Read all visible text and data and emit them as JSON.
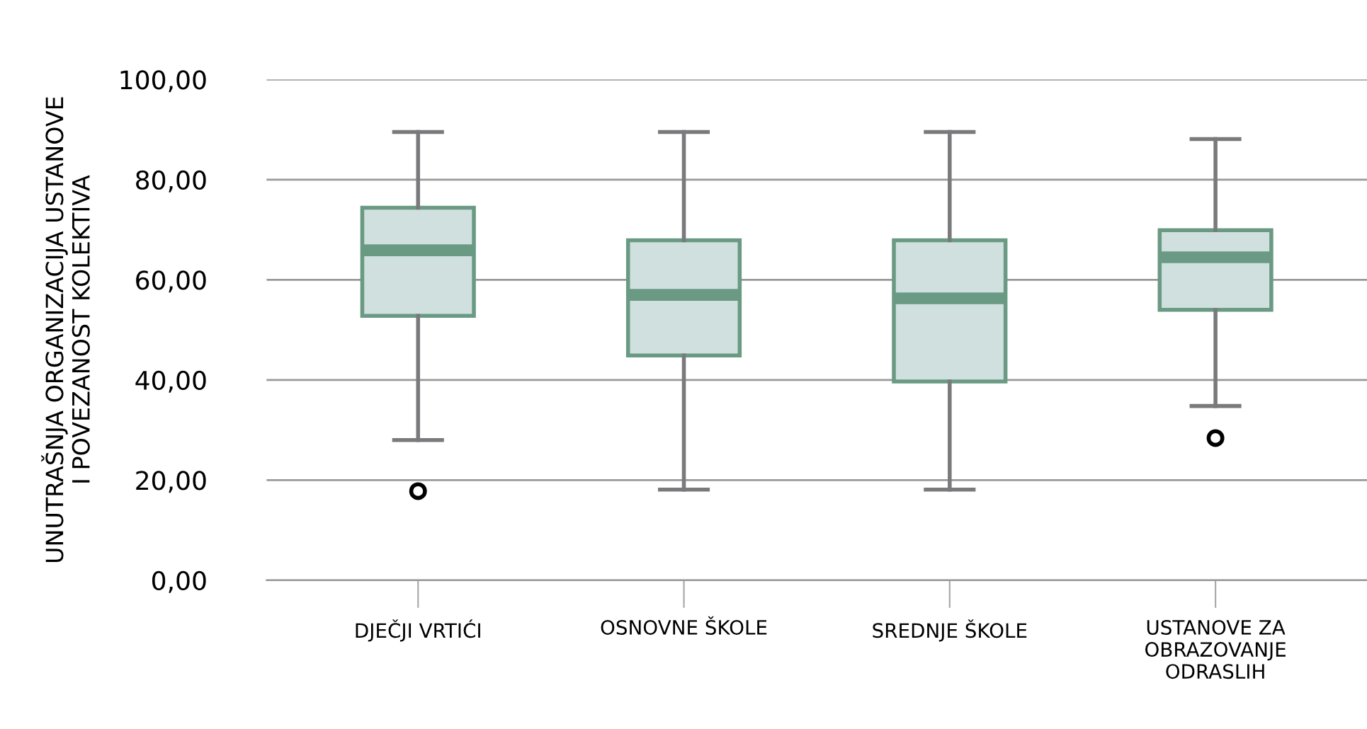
{
  "chart_data": {
    "type": "box",
    "ylabel": "UNUTRAŠNJA ORGANIZACIJA USTANOVE\nI POVEZANOST KOLEKTIVA",
    "categories": [
      "DJEČJI VRTIĆI",
      "OSNOVNE ŠKOLE",
      "SREDNJE ŠKOLE",
      "USTANOVE ZA\nOBRAZOVANJE\nODRASLIH"
    ],
    "boxes": [
      {
        "low": 28.0,
        "q1": 52.8,
        "median": 65.9,
        "q3": 74.4,
        "high": 89.5,
        "outliers": [
          17.8
        ]
      },
      {
        "low": 18.1,
        "q1": 44.9,
        "median": 57.0,
        "q3": 67.9,
        "high": 89.5
      },
      {
        "low": 18.1,
        "q1": 39.7,
        "median": 56.3,
        "q3": 67.9,
        "high": 89.5
      },
      {
        "low": 34.8,
        "q1": 54.0,
        "median": 64.5,
        "q3": 69.9,
        "high": 88.1,
        "outliers": [
          28.4
        ]
      }
    ],
    "color": "#cfe0df",
    "ylim": [
      0,
      100
    ],
    "yticks": [
      {
        "value": 0,
        "label": "0,00"
      },
      {
        "value": 20,
        "label": "20,00"
      },
      {
        "value": 40,
        "label": "40,00"
      },
      {
        "value": 60,
        "label": "60,00"
      },
      {
        "value": 80,
        "label": "80,00"
      },
      {
        "value": 100,
        "label": "100,00"
      }
    ],
    "grid": "y"
  }
}
